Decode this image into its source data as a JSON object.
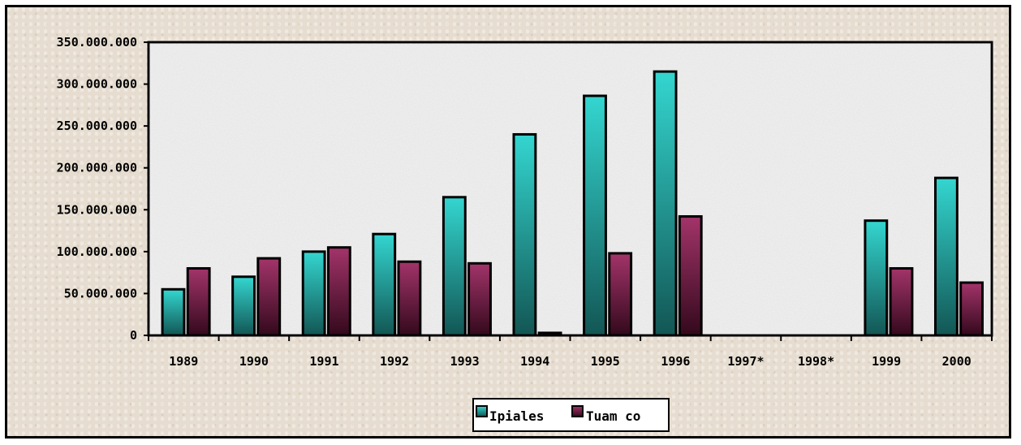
{
  "chart_data": {
    "type": "bar",
    "categories": [
      "1989",
      "1990",
      "1991",
      "1992",
      "1993",
      "1994",
      "1995",
      "1996",
      "1997*",
      "1998*",
      "1999",
      "2000"
    ],
    "series": [
      {
        "name": "Ipiales",
        "values": [
          55000000,
          70000000,
          100000000,
          121000000,
          165000000,
          240000000,
          286000000,
          315000000,
          null,
          null,
          137000000,
          188000000
        ],
        "color": "#2fc9c4",
        "color_dark": "#14605f"
      },
      {
        "name": "Tuam co",
        "values": [
          80000000,
          92000000,
          105000000,
          88000000,
          86000000,
          3000000,
          98000000,
          142000000,
          null,
          null,
          80000000,
          63000000
        ],
        "color": "#9a2f60",
        "color_dark": "#3d0c22"
      }
    ],
    "ylim": [
      0,
      350000000
    ],
    "yticks": [
      0,
      50000000,
      100000000,
      150000000,
      200000000,
      250000000,
      300000000,
      350000000
    ],
    "ytick_labels": [
      "0",
      "50.000.000",
      "100.000.000",
      "150.000.000",
      "200.000.000",
      "250.000.000",
      "300.000.000",
      "350.000.000"
    ],
    "legend_position": "bottom-center",
    "plot_background": "#f2f2f2",
    "title": "",
    "xlabel": "",
    "ylabel": ""
  }
}
